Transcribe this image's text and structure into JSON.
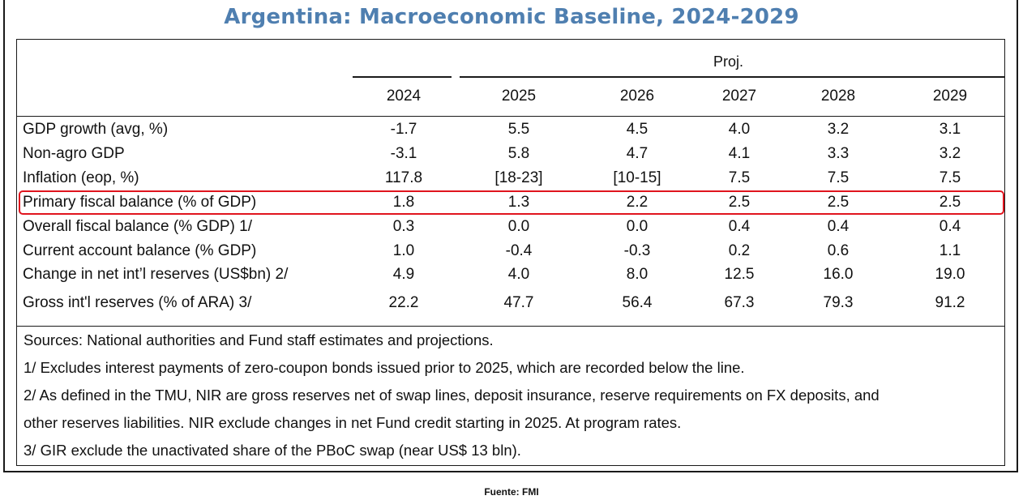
{
  "title": "Argentina: Macroeconomic Baseline, 2024-2029",
  "proj_label": "Proj.",
  "years": [
    "2024",
    "2025",
    "2026",
    "2027",
    "2028",
    "2029"
  ],
  "rows": [
    {
      "label": "GDP growth (avg, %)",
      "values": [
        "-1.7",
        "5.5",
        "4.5",
        "4.0",
        "3.2",
        "3.1"
      ]
    },
    {
      "label": "Non-agro GDP",
      "values": [
        "-3.1",
        "5.8",
        "4.7",
        "4.1",
        "3.3",
        "3.2"
      ]
    },
    {
      "label": "Inflation (eop, %)",
      "values": [
        "117.8",
        "[18-23]",
        "[10-15]",
        "7.5",
        "7.5",
        "7.5"
      ]
    },
    {
      "label": "Primary fiscal balance (% of GDP)",
      "values": [
        "1.8",
        "1.3",
        "2.2",
        "2.5",
        "2.5",
        "2.5"
      ]
    },
    {
      "label": "Overall fiscal balance (% GDP) 1/",
      "values": [
        "0.3",
        "0.0",
        "0.0",
        "0.4",
        "0.4",
        "0.4"
      ]
    },
    {
      "label": "Current account balance (% GDP)",
      "values": [
        "1.0",
        "-0.4",
        "-0.3",
        "0.2",
        "0.6",
        "1.1"
      ]
    },
    {
      "label": "Change in net int’l reserves (US$bn) 2/",
      "values": [
        "4.9",
        "4.0",
        "8.0",
        "12.5",
        "16.0",
        "19.0"
      ]
    },
    {
      "label": "Gross int'l reserves (% of ARA) 3/",
      "values": [
        "22.2",
        "47.7",
        "56.4",
        "67.3",
        "79.3",
        "91.2"
      ]
    }
  ],
  "notes": [
    "Sources: National authorities and Fund staff estimates and projections.",
    "1/ Excludes interest payments of zero-coupon bonds issued prior to 2025, which are recorded below the line.",
    "2/ As defined in the TMU, NIR are gross reserves net of swap lines, deposit insurance, reserve requirements on FX deposits, and",
    "other reserves liabilities. NIR exclude changes in net Fund credit starting in 2025. At program rates.",
    "3/ GIR exclude the unactivated share of the PBoC swap (near US$ 13 bln)."
  ],
  "highlight_color": "#e0141e",
  "title_color": "#4f7fb0",
  "source": "Fuente: FMI"
}
